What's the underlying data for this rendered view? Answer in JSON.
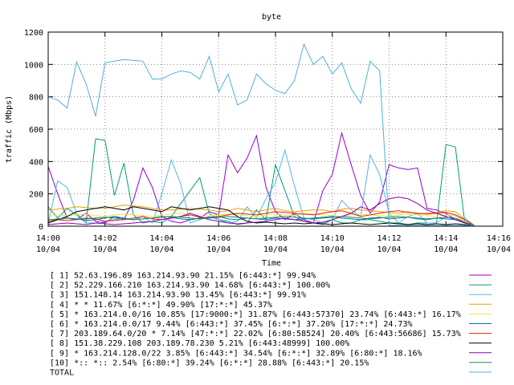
{
  "chart_data": {
    "type": "line",
    "title": "byte",
    "xlabel": "Time",
    "ylabel": "traffic (Mbps)",
    "ylim": [
      0,
      1200
    ],
    "yticks": [
      0,
      200,
      400,
      600,
      800,
      1000,
      1200
    ],
    "xlim": [
      "14:00",
      "14:16"
    ],
    "xticks": [
      {
        "time": "14:00",
        "date": "10/04"
      },
      {
        "time": "14:02",
        "date": "10/04"
      },
      {
        "time": "14:04",
        "date": "10/04"
      },
      {
        "time": "14:06",
        "date": "10/04"
      },
      {
        "time": "14:08",
        "date": "10/04"
      },
      {
        "time": "14:10",
        "date": "10/04"
      },
      {
        "time": "14:12",
        "date": "10/04"
      },
      {
        "time": "14:14",
        "date": "10/04"
      },
      {
        "time": "14:16",
        "date": "10/04"
      }
    ],
    "grid": true,
    "x": [
      "14:00:00",
      "14:00:20",
      "14:00:40",
      "14:01:00",
      "14:01:20",
      "14:01:40",
      "14:02:00",
      "14:02:20",
      "14:02:40",
      "14:03:00",
      "14:03:20",
      "14:03:40",
      "14:04:00",
      "14:04:20",
      "14:04:40",
      "14:05:00",
      "14:05:20",
      "14:05:40",
      "14:06:00",
      "14:06:20",
      "14:06:40",
      "14:07:00",
      "14:07:20",
      "14:07:40",
      "14:08:00",
      "14:08:20",
      "14:08:40",
      "14:09:00",
      "14:09:20",
      "14:09:40",
      "14:10:00",
      "14:10:20",
      "14:10:40",
      "14:11:00",
      "14:11:20",
      "14:11:40",
      "14:12:00",
      "14:12:20",
      "14:12:40",
      "14:13:00",
      "14:13:20",
      "14:13:40",
      "14:14:00",
      "14:14:20",
      "14:14:40",
      "14:15:00"
    ],
    "series": [
      {
        "name": "[ 1] 52.63.196.89 163.214.93.90 21.15% [6:443:*] 99.94%",
        "color": "#9400d3",
        "values": [
          370,
          200,
          50,
          40,
          80,
          30,
          20,
          60,
          40,
          160,
          360,
          240,
          60,
          30,
          20,
          40,
          50,
          90,
          70,
          440,
          330,
          420,
          560,
          240,
          90,
          40,
          80,
          40,
          20,
          220,
          320,
          575,
          380,
          190,
          80,
          150,
          380,
          360,
          350,
          360,
          110,
          100,
          80,
          40,
          20,
          5
        ]
      },
      {
        "name": "[ 2] 52.229.166.210 163.214.93.90 14.68% [6:443:*] 100.00%",
        "color": "#009e73",
        "values": [
          120,
          50,
          110,
          70,
          20,
          540,
          530,
          190,
          390,
          70,
          20,
          30,
          20,
          60,
          140,
          220,
          300,
          80,
          40,
          30,
          10,
          20,
          100,
          40,
          380,
          220,
          60,
          30,
          20,
          10,
          40,
          20,
          20,
          40,
          40,
          30,
          20,
          20,
          10,
          20,
          20,
          20,
          505,
          490,
          20,
          5
        ]
      },
      {
        "name": "[ 3] 151.148.14 163.214.93.90 13.45% [6:443:*] 99.91%",
        "color": "#56b4e9",
        "values": [
          20,
          280,
          240,
          80,
          20,
          20,
          30,
          40,
          50,
          40,
          60,
          20,
          200,
          410,
          260,
          20,
          40,
          60,
          40,
          20,
          30,
          120,
          50,
          170,
          270,
          470,
          250,
          50,
          40,
          20,
          40,
          160,
          100,
          60,
          440,
          320,
          80,
          20,
          60,
          80,
          20,
          20,
          60,
          40,
          50,
          5
        ]
      },
      {
        "name": "[ 4] * * 11.67% [6:*:*] 49.90% [17:*:*] 45.37%",
        "color": "#e69f00",
        "values": [
          100,
          105,
          110,
          120,
          115,
          110,
          110,
          120,
          130,
          125,
          120,
          110,
          100,
          100,
          105,
          110,
          105,
          100,
          90,
          95,
          110,
          100,
          90,
          100,
          110,
          95,
          90,
          95,
          100,
          100,
          90,
          105,
          110,
          100,
          95,
          90,
          85,
          80,
          90,
          75,
          80,
          85,
          95,
          90,
          40,
          5
        ]
      },
      {
        "name": "[ 5] * 163.214.0.0/16 10.85% [17:9000:*] 31.87% [6:443:57370] 23.74% [6:443:*] 16.17%",
        "color": "#f0e442",
        "values": [
          60,
          70,
          65,
          70,
          75,
          65,
          60,
          70,
          75,
          70,
          65,
          60,
          70,
          75,
          80,
          70,
          60,
          65,
          70,
          75,
          70,
          65,
          60,
          70,
          75,
          70,
          65,
          80,
          75,
          70,
          65,
          60,
          70,
          75,
          70,
          65,
          60,
          70,
          75,
          70,
          65,
          60,
          70,
          65,
          30,
          5
        ]
      },
      {
        "name": "[ 6] * 163.214.0.0/17 9.44% [6:443:*] 37.45% [6:*:*] 37.20% [17:*:*] 24.73%",
        "color": "#0072b2",
        "values": [
          30,
          40,
          50,
          45,
          35,
          40,
          50,
          60,
          50,
          40,
          45,
          50,
          60,
          55,
          45,
          40,
          50,
          55,
          60,
          45,
          40,
          50,
          45,
          40,
          50,
          45,
          40,
          45,
          50,
          55,
          60,
          50,
          45,
          40,
          50,
          55,
          45,
          50,
          55,
          45,
          40,
          50,
          45,
          40,
          25,
          5
        ]
      },
      {
        "name": "[ 7] 203.189.64.0/20 * 7.14% [47:*:*] 22.02% [6:80:58524] 20.40% [6:443:56686] 15.73%",
        "color": "#e51e10",
        "values": [
          30,
          40,
          35,
          40,
          50,
          45,
          30,
          35,
          40,
          50,
          60,
          45,
          40,
          50,
          60,
          70,
          55,
          50,
          60,
          70,
          80,
          75,
          70,
          80,
          90,
          85,
          80,
          75,
          70,
          80,
          90,
          95,
          80,
          60,
          70,
          80,
          90,
          95,
          85,
          80,
          75,
          80,
          85,
          70,
          40,
          5
        ]
      },
      {
        "name": "[ 8] 151.38.229.108 203.189.78.230 5.21% [6:443:48999] 100.00%",
        "color": "#000000",
        "values": [
          20,
          40,
          60,
          90,
          100,
          110,
          120,
          110,
          100,
          120,
          110,
          100,
          90,
          120,
          110,
          100,
          110,
          120,
          110,
          100,
          60,
          30,
          20,
          25,
          20,
          15,
          20,
          15,
          20,
          15,
          10,
          15,
          20,
          15,
          10,
          15,
          20,
          15,
          10,
          15,
          10,
          15,
          10,
          15,
          10,
          5
        ]
      },
      {
        "name": "[ 9] * 163.214.128.0/22 3.85% [6:443:*] 34.54% [6:*:*] 32.89% [6:80:*] 18.16%",
        "color": "#8b00b0",
        "values": [
          10,
          15,
          20,
          15,
          10,
          20,
          15,
          10,
          15,
          20,
          25,
          30,
          40,
          50,
          60,
          80,
          60,
          40,
          30,
          20,
          15,
          20,
          25,
          30,
          40,
          50,
          40,
          30,
          20,
          25,
          40,
          60,
          80,
          120,
          100,
          140,
          170,
          180,
          170,
          140,
          100,
          80,
          60,
          40,
          20,
          5
        ]
      },
      {
        "name": "[10] *:: *:: 2.54% [6:80:*] 39.24% [6:*:*] 28.88% [6:443:*] 20.15%",
        "color": "#1a8a5a",
        "values": [
          40,
          45,
          50,
          40,
          45,
          50,
          55,
          50,
          45,
          40,
          45,
          50,
          55,
          60,
          55,
          50,
          45,
          50,
          55,
          60,
          55,
          50,
          45,
          50,
          55,
          60,
          55,
          50,
          45,
          50,
          55,
          60,
          55,
          50,
          45,
          50,
          55,
          60,
          55,
          50,
          45,
          50,
          55,
          50,
          25,
          5
        ]
      },
      {
        "name": "TOTAL",
        "color": "#4fb2d8",
        "values": [
          800,
          780,
          730,
          1015,
          880,
          680,
          1010,
          1020,
          1030,
          1025,
          1020,
          910,
          910,
          940,
          960,
          950,
          910,
          1050,
          830,
          940,
          750,
          780,
          940,
          880,
          840,
          820,
          900,
          1125,
          1000,
          1050,
          940,
          1010,
          850,
          760,
          1020,
          960,
          5,
          5,
          5,
          5,
          5,
          5,
          5,
          5,
          5,
          5
        ]
      }
    ]
  }
}
